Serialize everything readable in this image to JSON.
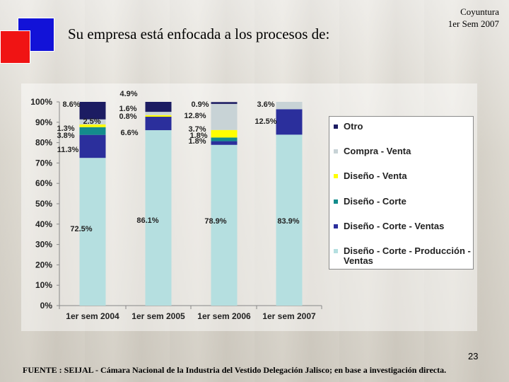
{
  "header": {
    "title": "Su empresa está enfocada a los procesos de:",
    "badge_line1": "Coyuntura",
    "badge_line2": "1er Sem 2007"
  },
  "chart_data": {
    "type": "bar",
    "stacked": true,
    "percent": true,
    "categories": [
      "1er sem 2004",
      "1er sem 2005",
      "1er sem 2006",
      "1er sem 2007"
    ],
    "ylim": [
      0,
      100
    ],
    "yticks": [
      "0%",
      "10%",
      "20%",
      "30%",
      "40%",
      "50%",
      "60%",
      "70%",
      "80%",
      "90%",
      "100%"
    ],
    "series": [
      {
        "name": "Diseño - Corte - Producción - Ventas",
        "color": "#b5dfe0",
        "values": [
          72.5,
          86.1,
          78.9,
          83.9
        ],
        "labels": [
          "72.5%",
          "86.1%",
          "78.9%",
          "83.9%"
        ]
      },
      {
        "name": "Diseño - Corte - Ventas",
        "color": "#2b2f9c",
        "values": [
          11.3,
          6.6,
          1.8,
          12.5
        ],
        "labels": [
          "11.3%",
          "6.6%",
          "1.8%",
          "12.5%"
        ]
      },
      {
        "name": "Diseño - Corte",
        "color": "#138c8c",
        "values": [
          3.8,
          0.0,
          1.8,
          0.0
        ],
        "labels": [
          "3.8%",
          "",
          "1.8%",
          ""
        ]
      },
      {
        "name": "Diseño - Venta",
        "color": "#ffff00",
        "values": [
          1.3,
          0.8,
          3.7,
          0.0
        ],
        "labels": [
          "1.3%",
          "0.8%",
          "3.7%",
          ""
        ]
      },
      {
        "name": "Compra - Venta",
        "color": "#c8d3d6",
        "values": [
          2.5,
          1.6,
          12.8,
          3.6
        ],
        "labels": [
          "2.5%",
          "1.6%",
          "12.8%",
          "3.6%"
        ]
      },
      {
        "name": "Otro",
        "color": "#1c1c62",
        "values": [
          8.6,
          4.9,
          0.9,
          0.0
        ],
        "labels": [
          "8.6%",
          "4.9%",
          "0.9%",
          ""
        ]
      }
    ],
    "legend_order": [
      "Otro",
      "Compra - Venta",
      "Diseño - Venta",
      "Diseño - Corte",
      "Diseño - Corte - Ventas",
      "Diseño - Corte - Producción - Ventas"
    ],
    "legend_position": "right"
  },
  "footer": {
    "page_number": "23",
    "source": "FUENTE :  SEIJAL - Cámara Nacional de la Industria del Vestido Delegación Jalisco;  en base a investigación directa."
  }
}
